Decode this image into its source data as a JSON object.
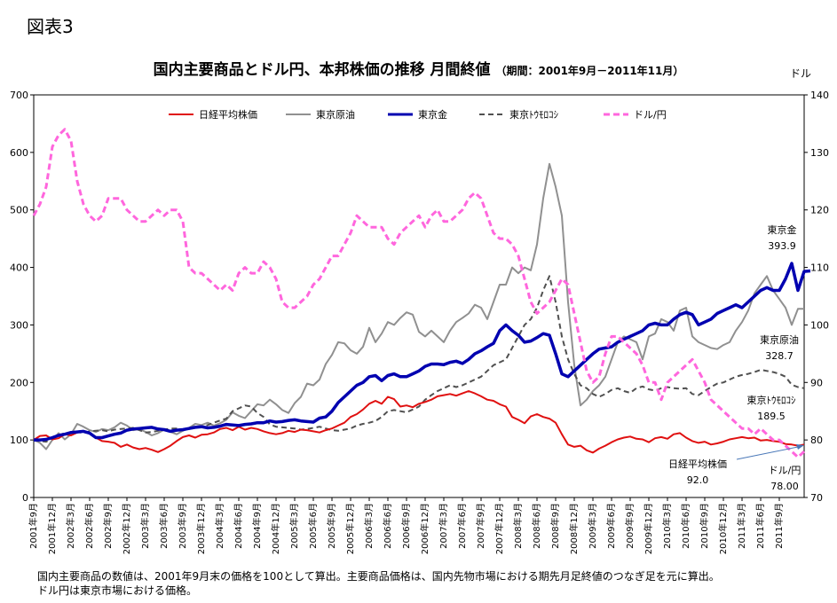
{
  "figure_label": "図表3",
  "chart_data": {
    "type": "line",
    "title": "国内主要商品とドル円、本邦株価の推移 月間終値",
    "subtitle": "（期間：2001年9月－2011年11月）",
    "y2_unit": "ドル",
    "ylim": [
      0,
      700
    ],
    "y_ticks": [
      0,
      100,
      200,
      300,
      400,
      500,
      600,
      700
    ],
    "y2lim": [
      70,
      140
    ],
    "y2_ticks": [
      70,
      80,
      90,
      100,
      110,
      120,
      130,
      140
    ],
    "x_tick_labels": [
      "2001年9月",
      "2001年12月",
      "2002年3月",
      "2002年6月",
      "2002年9月",
      "2002年12月",
      "2003年3月",
      "2003年6月",
      "2003年9月",
      "2003年12月",
      "2004年3月",
      "2004年6月",
      "2004年9月",
      "2004年12月",
      "2005年3月",
      "2005年6月",
      "2005年9月",
      "2005年12月",
      "2006年3月",
      "2006年6月",
      "2006年9月",
      "2006年12月",
      "2007年3月",
      "2007年6月",
      "2007年9月",
      "2007年12月",
      "2008年3月",
      "2008年6月",
      "2008年9月",
      "2008年12月",
      "2009年3月",
      "2009年6月",
      "2009年9月",
      "2009年12月",
      "2010年3月",
      "2010年6月",
      "2010年9月",
      "2010年12月",
      "2011年3月",
      "2011年6月",
      "2011年9月"
    ],
    "legend_placement": "top",
    "series": [
      {
        "name": "日経平均株価",
        "axis": "left",
        "color": "#e01010",
        "dash": "",
        "width": 2,
        "values": [
          100,
          107,
          108,
          101,
          103,
          110,
          108,
          113,
          115,
          111,
          104,
          98,
          97,
          95,
          88,
          92,
          87,
          84,
          86,
          83,
          79,
          84,
          90,
          98,
          105,
          108,
          104,
          109,
          110,
          113,
          119,
          121,
          117,
          123,
          118,
          121,
          119,
          115,
          112,
          110,
          112,
          116,
          114,
          118,
          117,
          115,
          113,
          117,
          120,
          125,
          130,
          140,
          145,
          153,
          163,
          168,
          163,
          175,
          171,
          158,
          160,
          157,
          163,
          166,
          170,
          176,
          178,
          180,
          177,
          181,
          185,
          181,
          176,
          170,
          168,
          162,
          158,
          140,
          135,
          129,
          141,
          145,
          140,
          137,
          130,
          110,
          92,
          88,
          90,
          82,
          78,
          85,
          90,
          96,
          101,
          104,
          106,
          102,
          101,
          96,
          103,
          105,
          102,
          110,
          112,
          104,
          98,
          95,
          97,
          92,
          94,
          97,
          101,
          103,
          105,
          103,
          104,
          99,
          100,
          98,
          97,
          93,
          92,
          90,
          92
        ]
      },
      {
        "name": "東京原油",
        "axis": "left",
        "color": "#909090",
        "dash": "",
        "width": 2,
        "values": [
          100,
          95,
          84,
          100,
          112,
          101,
          110,
          128,
          123,
          117,
          114,
          119,
          117,
          122,
          130,
          125,
          117,
          119,
          114,
          108,
          112,
          118,
          114,
          110,
          116,
          121,
          128,
          126,
          130,
          125,
          129,
          135,
          148,
          142,
          138,
          150,
          162,
          160,
          170,
          162,
          152,
          147,
          164,
          175,
          198,
          195,
          205,
          232,
          248,
          270,
          268,
          256,
          250,
          262,
          295,
          270,
          285,
          305,
          300,
          312,
          322,
          318,
          288,
          280,
          290,
          280,
          270,
          290,
          305,
          312,
          320,
          335,
          330,
          310,
          340,
          370,
          370,
          400,
          390,
          400,
          395,
          440,
          520,
          580,
          540,
          490,
          340,
          230,
          160,
          170,
          185,
          195,
          210,
          240,
          270,
          280,
          275,
          270,
          240,
          280,
          285,
          310,
          305,
          290,
          325,
          330,
          280,
          270,
          265,
          260,
          258,
          265,
          270,
          290,
          305,
          325,
          355,
          370,
          385,
          360,
          345,
          330,
          300,
          328,
          328
        ]
      },
      {
        "name": "東京金",
        "axis": "left",
        "color": "#0000b0",
        "dash": "",
        "width": 3.5,
        "values": [
          100,
          100,
          101,
          104,
          108,
          110,
          113,
          114,
          115,
          112,
          104,
          104,
          107,
          110,
          112,
          117,
          119,
          120,
          121,
          122,
          119,
          118,
          115,
          117,
          118,
          120,
          122,
          123,
          121,
          122,
          124,
          127,
          126,
          125,
          127,
          128,
          130,
          130,
          133,
          131,
          132,
          134,
          135,
          133,
          132,
          131,
          138,
          140,
          150,
          165,
          175,
          185,
          195,
          200,
          210,
          212,
          203,
          212,
          215,
          210,
          210,
          215,
          220,
          228,
          232,
          232,
          231,
          235,
          237,
          233,
          240,
          250,
          255,
          262,
          268,
          290,
          300,
          290,
          282,
          270,
          272,
          278,
          285,
          282,
          250,
          215,
          210,
          220,
          230,
          240,
          250,
          258,
          260,
          262,
          270,
          275,
          280,
          285,
          290,
          300,
          303,
          300,
          300,
          310,
          318,
          322,
          318,
          300,
          305,
          310,
          320,
          325,
          330,
          335,
          330,
          340,
          350,
          360,
          365,
          360,
          360,
          380,
          407,
          360,
          393,
          394
        ]
      },
      {
        "name": "東京トウモロコシ",
        "axis": "left",
        "color": "#505050",
        "dash": "6,4",
        "width": 2,
        "values": [
          100,
          98,
          97,
          103,
          108,
          112,
          113,
          114,
          112,
          115,
          116,
          117,
          115,
          118,
          119,
          120,
          121,
          117,
          113,
          114,
          116,
          118,
          120,
          120,
          117,
          119,
          121,
          123,
          126,
          130,
          134,
          137,
          150,
          155,
          160,
          158,
          147,
          140,
          127,
          123,
          122,
          121,
          120,
          118,
          119,
          121,
          123,
          120,
          117,
          116,
          118,
          120,
          125,
          128,
          130,
          133,
          140,
          150,
          152,
          150,
          148,
          153,
          158,
          170,
          178,
          185,
          190,
          195,
          192,
          195,
          200,
          205,
          210,
          220,
          230,
          235,
          240,
          260,
          280,
          300,
          310,
          330,
          360,
          385,
          340,
          280,
          240,
          215,
          195,
          190,
          180,
          175,
          180,
          187,
          190,
          185,
          182,
          190,
          193,
          188,
          186,
          190,
          192,
          190,
          189,
          190,
          180,
          178,
          185,
          192,
          198,
          200,
          205,
          210,
          213,
          215,
          218,
          222,
          220,
          218,
          215,
          210,
          196,
          192,
          190
        ]
      },
      {
        "name": "ドル/円",
        "axis": "right",
        "color": "#ff66dd",
        "dash": "7,4",
        "width": 3,
        "values": [
          119,
          121,
          124,
          131,
          133,
          134,
          132,
          125,
          121,
          119,
          118,
          119,
          122,
          122,
          122,
          120,
          119,
          118,
          118,
          119,
          120,
          119,
          120,
          120,
          118,
          110,
          109,
          109,
          108,
          107,
          106,
          107,
          106,
          109,
          110,
          109,
          109,
          111,
          110,
          108,
          104,
          103,
          103,
          104,
          105,
          107,
          108,
          110,
          112,
          112,
          114,
          116,
          119,
          118,
          117,
          117,
          117,
          115,
          114,
          116,
          117,
          118,
          119,
          117,
          119,
          120,
          118,
          118,
          119,
          120,
          122,
          123,
          122,
          119,
          116,
          115,
          115,
          114,
          112,
          108,
          104,
          102,
          103,
          104,
          106,
          108,
          107,
          102,
          97,
          92,
          90,
          91,
          95,
          98,
          98,
          97,
          96,
          95,
          93,
          90,
          90,
          87,
          90,
          91,
          92,
          93,
          94,
          92,
          90,
          87,
          86,
          85,
          84,
          83,
          82,
          82,
          81,
          82,
          81,
          80,
          80,
          79,
          78,
          77,
          78
        ]
      }
    ],
    "end_labels": [
      {
        "series": "東京金",
        "name": "東京金",
        "value": "393.9"
      },
      {
        "series": "東京原油",
        "name": "東京原油",
        "value": "328.7"
      },
      {
        "series": "東京トウモロコシ",
        "name": "東京ﾄｳﾓﾛｺｼ",
        "value": "189.5"
      },
      {
        "series": "日経平均株価",
        "name": "日経平均株価",
        "value": "92.0"
      },
      {
        "series": "ドル/円",
        "name": "ドル/円",
        "value": "78.00"
      }
    ]
  },
  "legend": [
    {
      "label": "日経平均株価"
    },
    {
      "label": "東京原油"
    },
    {
      "label": "東京金"
    },
    {
      "label": "東京ﾄｳﾓﾛｺｼ"
    },
    {
      "label": "ドル/円"
    }
  ],
  "note_lines": [
    "国内主要商品の数値は、2001年9月末の価格を100として算出。主要商品価格は、国内先物市場における期先月足終値のつなぎ足を元に算出。",
    "ドル円は東京市場における価格。"
  ]
}
